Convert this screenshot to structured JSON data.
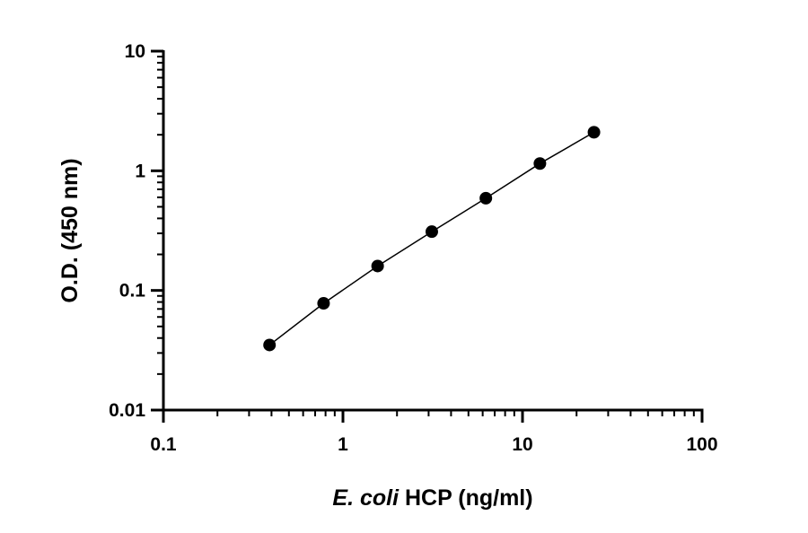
{
  "chart_data": {
    "type": "scatter",
    "xlabel_italic": "E. coli",
    "xlabel_rest": " HCP (ng/ml)",
    "ylabel": "O.D. (450 nm)",
    "x_scale": "log",
    "y_scale": "log",
    "xlim": [
      0.1,
      100
    ],
    "ylim": [
      0.01,
      10
    ],
    "x_ticks": [
      {
        "value": 0.1,
        "label": "0.1"
      },
      {
        "value": 1,
        "label": "1"
      },
      {
        "value": 10,
        "label": "10"
      },
      {
        "value": 100,
        "label": "100"
      }
    ],
    "y_ticks": [
      {
        "value": 0.01,
        "label": "0.01"
      },
      {
        "value": 0.1,
        "label": "0.1"
      },
      {
        "value": 1,
        "label": "1"
      },
      {
        "value": 10,
        "label": "10"
      }
    ],
    "grid": false,
    "legend": false,
    "series": [
      {
        "x": [
          0.39,
          0.78,
          1.56,
          3.125,
          6.25,
          12.5,
          25
        ],
        "y": [
          0.035,
          0.078,
          0.16,
          0.31,
          0.59,
          1.15,
          2.1
        ],
        "marker_color": "#000000",
        "fit_line": true
      }
    ]
  }
}
